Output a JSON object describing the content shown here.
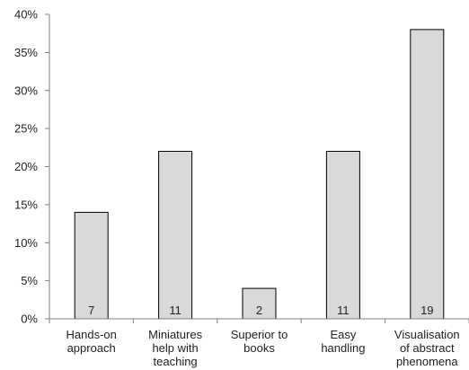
{
  "colors": {
    "bar_fill": "#d9d9d9",
    "bar_stroke": "#000000",
    "axis": "#808080",
    "text": "#222222"
  },
  "chart_data": {
    "type": "bar",
    "title": "",
    "xlabel": "",
    "ylabel": "",
    "ylim": [
      0,
      40
    ],
    "y_ticks": [
      0,
      5,
      10,
      15,
      20,
      25,
      30,
      35,
      40
    ],
    "y_tick_labels": [
      "0%",
      "5%",
      "10%",
      "15%",
      "20%",
      "25%",
      "30%",
      "35%",
      "40%"
    ],
    "grid": false,
    "legend": "none",
    "categories": [
      [
        "Hands-on",
        "approach"
      ],
      [
        "Miniatures",
        "help with",
        "teaching"
      ],
      [
        "Superior to",
        "books"
      ],
      [
        "Easy",
        "handling"
      ],
      [
        "Visualisation",
        "of abstract",
        "phenomena"
      ]
    ],
    "values": [
      14,
      22,
      4,
      22,
      38
    ],
    "data_labels": [
      "7",
      "11",
      "2",
      "11",
      "19"
    ]
  }
}
